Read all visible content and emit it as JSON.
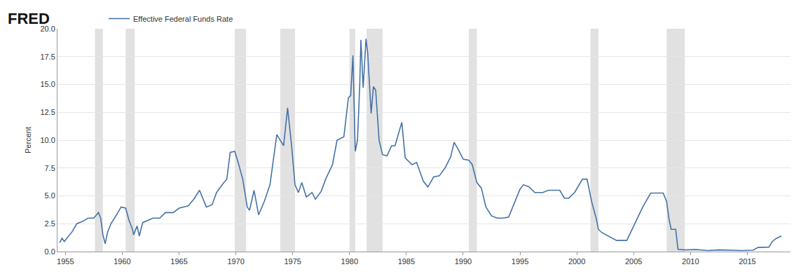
{
  "chart_data": {
    "type": "line",
    "logo": "FRED",
    "y_label": "Percent",
    "legend": "top left",
    "grid": true,
    "xlim": [
      1954.3,
      2018.8
    ],
    "xticks": [
      1955,
      1960,
      1965,
      1970,
      1975,
      1980,
      1985,
      1990,
      1995,
      2000,
      2005,
      2010,
      2015
    ],
    "ylim": [
      0,
      20
    ],
    "yticks": [
      {
        "value": 0,
        "label": "0.0"
      },
      2.5,
      {
        "value": 5,
        "label": "5.0"
      },
      7.5,
      {
        "value": 10,
        "label": "10.0"
      },
      12.5,
      {
        "value": 15,
        "label": "15.0"
      },
      17.5,
      {
        "value": 20,
        "label": "20.0"
      }
    ],
    "recessions": [
      [
        1957.6,
        1958.3
      ],
      [
        1960.3,
        1961.1
      ],
      [
        1969.9,
        1970.9
      ],
      [
        1973.9,
        1975.2
      ],
      [
        1980.0,
        1980.5
      ],
      [
        1981.5,
        1982.9
      ],
      [
        1990.5,
        1991.2
      ],
      [
        2001.2,
        2001.9
      ],
      [
        2007.9,
        2009.5
      ]
    ],
    "x": [
      1954.5,
      1954.7,
      1954.9,
      1955.2,
      1955.6,
      1956.0,
      1956.5,
      1957.0,
      1957.5,
      1957.9,
      1958.1,
      1958.3,
      1958.5,
      1958.7,
      1959.0,
      1959.5,
      1959.9,
      1960.3,
      1960.6,
      1960.9,
      1961.0,
      1961.3,
      1961.5,
      1961.8,
      1962.2,
      1962.7,
      1963.3,
      1963.8,
      1964.5,
      1965.0,
      1965.8,
      1966.3,
      1966.8,
      1967.0,
      1967.4,
      1967.9,
      1968.3,
      1968.8,
      1969.2,
      1969.5,
      1969.9,
      1970.2,
      1970.6,
      1971.0,
      1971.2,
      1971.6,
      1972.0,
      1972.5,
      1973.0,
      1973.6,
      1973.9,
      1974.2,
      1974.55,
      1974.9,
      1975.2,
      1975.5,
      1975.8,
      1976.2,
      1976.7,
      1977.0,
      1977.5,
      1977.9,
      1978.5,
      1978.9,
      1979.5,
      1979.9,
      1980.1,
      1980.3,
      1980.5,
      1980.7,
      1980.9,
      1981.0,
      1981.2,
      1981.45,
      1981.6,
      1981.9,
      1982.1,
      1982.3,
      1982.6,
      1982.9,
      1983.3,
      1983.7,
      1984.0,
      1984.6,
      1984.9,
      1985.5,
      1985.9,
      1986.5,
      1986.9,
      1987.4,
      1987.9,
      1988.4,
      1988.9,
      1989.2,
      1989.5,
      1990.0,
      1990.5,
      1990.8,
      1991.2,
      1991.6,
      1992.0,
      1992.5,
      1993.0,
      1993.5,
      1994.0,
      1994.5,
      1995.0,
      1995.3,
      1995.8,
      1996.3,
      1997.0,
      1997.5,
      1998.5,
      1998.9,
      1999.3,
      1999.8,
      2000.2,
      2000.5,
      2000.9,
      2001.3,
      2001.7,
      2001.9,
      2002.2,
      2002.9,
      2003.5,
      2004.4,
      2005.0,
      2005.8,
      2006.5,
      2007.6,
      2007.9,
      2008.1,
      2008.3,
      2008.7,
      2008.9,
      2009.5,
      2010.5,
      2011.5,
      2012.5,
      2013.5,
      2014.5,
      2015.5,
      2015.95,
      2016.9,
      2017.2,
      2017.5,
      2018.0
    ],
    "series": [
      {
        "name": "Effective Federal Funds Rate",
        "color": "#4572a7",
        "values": [
          0.8,
          1.2,
          0.9,
          1.3,
          1.8,
          2.5,
          2.7,
          3.0,
          3.0,
          3.5,
          3.0,
          1.5,
          0.7,
          1.7,
          2.5,
          3.3,
          4.0,
          3.9,
          2.8,
          2.0,
          1.5,
          2.3,
          1.4,
          2.6,
          2.8,
          3.0,
          3.0,
          3.5,
          3.5,
          3.9,
          4.1,
          4.7,
          5.5,
          5.0,
          4.0,
          4.2,
          5.3,
          6.0,
          6.5,
          8.9,
          9.0,
          8.0,
          6.5,
          4.0,
          3.7,
          5.5,
          3.3,
          4.5,
          6.0,
          10.5,
          10.0,
          9.5,
          12.9,
          9.5,
          6.0,
          5.3,
          6.2,
          4.9,
          5.3,
          4.7,
          5.4,
          6.5,
          7.8,
          10.0,
          10.3,
          13.8,
          14.0,
          17.6,
          9.0,
          10.0,
          15.0,
          19.0,
          14.7,
          19.1,
          17.8,
          12.4,
          14.8,
          14.5,
          10.0,
          8.7,
          8.6,
          9.5,
          9.5,
          11.6,
          8.4,
          7.8,
          8.0,
          6.3,
          5.8,
          6.7,
          6.8,
          7.5,
          8.5,
          9.8,
          9.3,
          8.3,
          8.2,
          7.8,
          6.2,
          5.7,
          4.0,
          3.2,
          3.0,
          3.0,
          3.1,
          4.3,
          5.6,
          6.0,
          5.8,
          5.3,
          5.3,
          5.5,
          5.5,
          4.8,
          4.8,
          5.3,
          6.0,
          6.5,
          6.5,
          4.5,
          3.0,
          2.0,
          1.7,
          1.3,
          1.0,
          1.0,
          2.3,
          4.0,
          5.25,
          5.25,
          4.5,
          3.0,
          2.0,
          2.0,
          0.2,
          0.15,
          0.18,
          0.09,
          0.15,
          0.1,
          0.09,
          0.13,
          0.37,
          0.4,
          0.9,
          1.15,
          1.4
        ]
      }
    ]
  }
}
